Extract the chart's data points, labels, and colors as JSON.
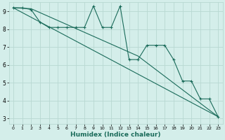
{
  "title": "",
  "xlabel": "Humidex (Indice chaleur)",
  "ylabel": "",
  "bg_color": "#d4eeea",
  "grid_color": "#b8d8d2",
  "line_color": "#1a6b5a",
  "xlim": [
    -0.5,
    23.5
  ],
  "ylim": [
    2.7,
    9.5
  ],
  "yticks": [
    3,
    4,
    5,
    6,
    7,
    8,
    9
  ],
  "xticks": [
    0,
    1,
    2,
    3,
    4,
    5,
    6,
    7,
    8,
    9,
    10,
    11,
    12,
    13,
    14,
    15,
    16,
    17,
    18,
    19,
    20,
    21,
    22,
    23
  ],
  "series1_x": [
    0,
    1,
    2,
    3,
    4,
    5,
    6,
    7,
    8,
    9,
    10,
    11,
    12,
    13,
    14,
    15,
    16,
    17,
    18,
    19,
    20,
    21,
    22,
    23
  ],
  "series1_y": [
    9.2,
    9.2,
    9.1,
    8.4,
    8.1,
    8.1,
    8.1,
    8.1,
    8.1,
    9.3,
    8.1,
    8.1,
    9.3,
    6.3,
    6.3,
    7.1,
    7.1,
    7.1,
    6.3,
    5.1,
    5.1,
    4.1,
    4.1,
    3.1
  ],
  "series2_x": [
    0,
    23
  ],
  "series2_y": [
    9.2,
    3.1
  ],
  "series3_x": [
    0,
    2,
    14,
    23
  ],
  "series3_y": [
    9.2,
    9.15,
    6.5,
    3.1
  ]
}
